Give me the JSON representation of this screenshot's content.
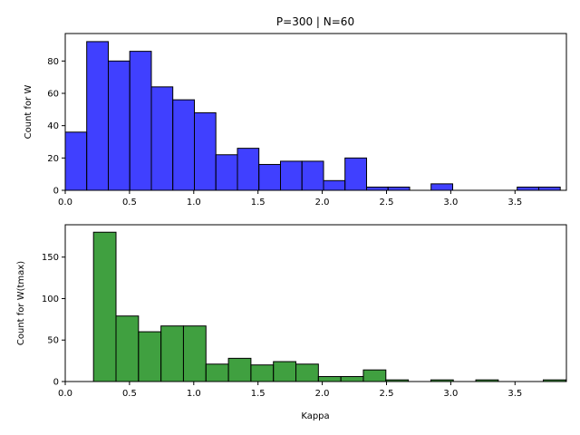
{
  "chart_data": [
    {
      "type": "bar",
      "title": "P=300 | N=60",
      "xlabel": "",
      "ylabel": "Count for W",
      "bar_color": "#0000ff",
      "xlim": [
        0.0,
        3.9
      ],
      "ylim": [
        0,
        97
      ],
      "xticks": [
        "0.0",
        "0.5",
        "1.0",
        "1.5",
        "2.0",
        "2.5",
        "3.0",
        "3.5"
      ],
      "yticks": [
        "0",
        "20",
        "40",
        "60",
        "80"
      ],
      "bin_edges": [
        0.0,
        0.167,
        0.335,
        0.502,
        0.67,
        0.837,
        1.005,
        1.172,
        1.34,
        1.507,
        1.675,
        1.842,
        2.01,
        2.177,
        2.345,
        2.512,
        2.68,
        2.847,
        3.015,
        3.182,
        3.35,
        3.517,
        3.685,
        3.852
      ],
      "values": [
        36,
        92,
        80,
        86,
        64,
        56,
        48,
        22,
        26,
        16,
        18,
        18,
        6,
        20,
        2,
        2,
        0,
        4,
        0,
        0,
        0,
        2,
        2
      ]
    },
    {
      "type": "bar",
      "title": "",
      "xlabel": "Kappa",
      "ylabel": "Count for W(tmax)",
      "bar_color": "#008000",
      "xlim": [
        0.0,
        3.9
      ],
      "ylim": [
        0,
        189
      ],
      "xticks": [
        "0.0",
        "0.5",
        "1.0",
        "1.5",
        "2.0",
        "2.5",
        "3.0",
        "3.5"
      ],
      "yticks": [
        "0",
        "50",
        "100",
        "150"
      ],
      "bin_edges": [
        0.22,
        0.395,
        0.57,
        0.745,
        0.92,
        1.095,
        1.27,
        1.445,
        1.62,
        1.795,
        1.97,
        2.145,
        2.32,
        2.495,
        2.67,
        2.845,
        3.02,
        3.195,
        3.37,
        3.545,
        3.72,
        3.895
      ],
      "values": [
        180,
        79,
        60,
        67,
        67,
        21,
        28,
        20,
        24,
        21,
        6,
        6,
        14,
        2,
        0,
        2,
        0,
        2,
        0,
        0,
        2
      ]
    }
  ]
}
